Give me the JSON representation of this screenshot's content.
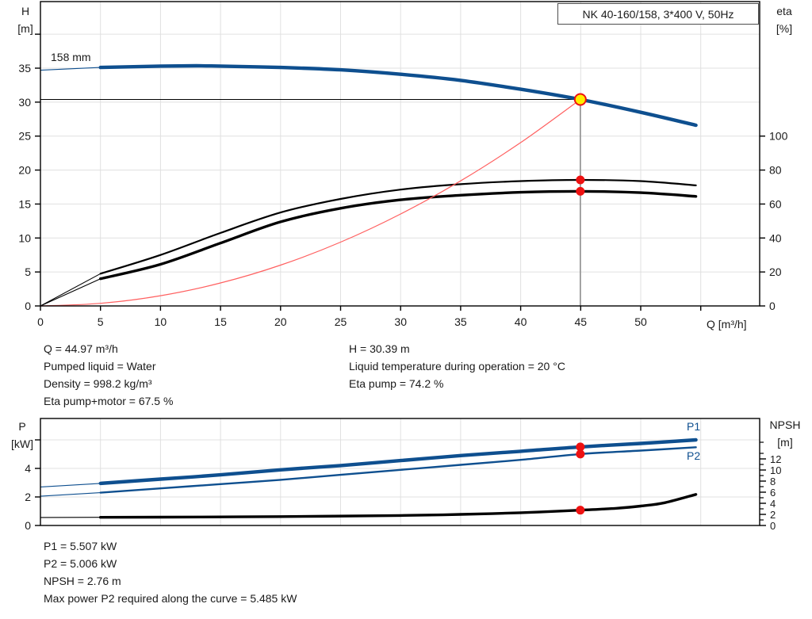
{
  "title_box": "NK 40-160/158, 3*400 V, 50Hz",
  "axis_labels": {
    "h": "H",
    "h_unit": "[m]",
    "eta": "eta",
    "eta_unit": "[%]",
    "q": "Q [m³/h]",
    "p": "P",
    "p_unit": "[kW]",
    "npsh": "NPSH",
    "npsh_unit": "[m]",
    "p1": "P1",
    "p2": "P2",
    "impeller": "158 mm"
  },
  "stats_top": {
    "left": [
      "Q = 44.97 m³/h",
      "Pumped liquid = Water",
      "Density = 998.2 kg/m³",
      "Eta pump+motor = 67.5 %"
    ],
    "right": [
      "H = 30.39 m",
      "Liquid temperature during operation = 20 °C",
      "Eta pump = 74.2 %"
    ]
  },
  "stats_bottom": [
    "P1 = 5.507 kW",
    "P2 = 5.006 kW",
    "NPSH = 2.76 m",
    "Max power P2 required along the curve = 5.485 kW"
  ],
  "colors": {
    "curve_blue": "#0e4f8f",
    "marker_red": "#ee1111",
    "system_red": "#ff6060",
    "duty_yellow": "#ffee00",
    "grid": "#e0e0e0",
    "duty_gray": "#8a8a8a",
    "axis_black": "#000000"
  },
  "chart_data": [
    {
      "type": "line",
      "title": "NK 40-160/158, 3*400 V, 50Hz",
      "xlabel": "Q [m³/h]",
      "ylabel_left": "H [m]",
      "ylabel_right": "eta [%]",
      "xlim": [
        0,
        59.9
      ],
      "ylim_left": [
        0,
        44.8
      ],
      "ylim_right": [
        0,
        192
      ],
      "x_ticks": [
        0,
        5,
        10,
        15,
        20,
        25,
        30,
        35,
        40,
        45,
        50
      ],
      "x_ticks_unlabeled": [
        55
      ],
      "y_ticks_left": [
        0,
        5,
        10,
        15,
        20,
        25,
        30,
        35
      ],
      "y_ticks_left_unlabeled": [
        40
      ],
      "y_ticks_right": [
        0,
        20,
        40,
        60,
        80,
        100
      ],
      "grid": true,
      "annotation": "158 mm",
      "series": [
        {
          "name": "pump-curve-158mm",
          "axis": "left",
          "style": "thick-blue",
          "points": [
            [
              0,
              34.7
            ],
            [
              5,
              35.1
            ],
            [
              10,
              35.3
            ],
            [
              13,
              35.35
            ],
            [
              15,
              35.3
            ],
            [
              20,
              35.1
            ],
            [
              25,
              34.75
            ],
            [
              30,
              34.1
            ],
            [
              35,
              33.2
            ],
            [
              40,
              31.9
            ],
            [
              44.97,
              30.39
            ],
            [
              50,
              28.5
            ],
            [
              54.6,
              26.6
            ]
          ]
        },
        {
          "name": "eta-pump",
          "axis": "right",
          "style": "thin-black",
          "points": [
            [
              0,
              0
            ],
            [
              5,
              19
            ],
            [
              10,
              30
            ],
            [
              15,
              43
            ],
            [
              20,
              55
            ],
            [
              25,
              63
            ],
            [
              30,
              68.5
            ],
            [
              35,
              71.7
            ],
            [
              40,
              73.5
            ],
            [
              44.97,
              74.2
            ],
            [
              50,
              73.5
            ],
            [
              54.6,
              71
            ]
          ]
        },
        {
          "name": "eta-pump-motor",
          "axis": "right",
          "style": "thick-black",
          "points": [
            [
              0,
              0
            ],
            [
              5,
              16
            ],
            [
              10,
              24.5
            ],
            [
              15,
              37
            ],
            [
              20,
              49.5
            ],
            [
              25,
              57.5
            ],
            [
              30,
              62.5
            ],
            [
              35,
              65.2
            ],
            [
              40,
              66.9
            ],
            [
              44.97,
              67.5
            ],
            [
              50,
              66.7
            ],
            [
              54.6,
              64.5
            ]
          ]
        },
        {
          "name": "system-curve",
          "axis": "left",
          "style": "thin-red",
          "points": [
            [
              0,
              0
            ],
            [
              5,
              0.38
            ],
            [
              10,
              1.5
            ],
            [
              15,
              3.38
            ],
            [
              20,
              6.01
            ],
            [
              25,
              9.39
            ],
            [
              30,
              13.53
            ],
            [
              35,
              18.41
            ],
            [
              40,
              24.05
            ],
            [
              44.97,
              30.39
            ]
          ]
        }
      ],
      "duty_point": {
        "q": 44.97,
        "h": 30.39,
        "eta_pump": 74.2,
        "eta_pump_motor": 67.5
      }
    },
    {
      "type": "line",
      "xlabel": "",
      "ylabel_left": "P [kW]",
      "ylabel_right": "NPSH [m]",
      "xlim": [
        0,
        59.9
      ],
      "ylim_left": [
        0,
        7.5
      ],
      "ylim_right": [
        0,
        19.3
      ],
      "y_ticks_left": [
        0,
        2,
        4
      ],
      "y_ticks_left_unlabeled": [
        6
      ],
      "y_ticks_right": [
        0,
        2,
        4,
        6,
        8,
        10,
        12
      ],
      "y_ticks_right_minor": [
        1,
        3,
        5,
        7,
        9,
        11,
        13,
        15
      ],
      "grid": true,
      "series": [
        {
          "name": "p1-curve",
          "axis": "left",
          "style": "thick-blue",
          "points": [
            [
              0,
              2.7
            ],
            [
              5,
              2.95
            ],
            [
              10,
              3.25
            ],
            [
              15,
              3.55
            ],
            [
              20,
              3.9
            ],
            [
              25,
              4.2
            ],
            [
              30,
              4.55
            ],
            [
              35,
              4.9
            ],
            [
              40,
              5.2
            ],
            [
              44.97,
              5.507
            ],
            [
              50,
              5.75
            ],
            [
              54.6,
              6.0
            ]
          ]
        },
        {
          "name": "p2-curve",
          "axis": "left",
          "style": "mid-blue",
          "points": [
            [
              0,
              2.05
            ],
            [
              5,
              2.3
            ],
            [
              10,
              2.6
            ],
            [
              15,
              2.9
            ],
            [
              20,
              3.2
            ],
            [
              25,
              3.55
            ],
            [
              30,
              3.9
            ],
            [
              35,
              4.25
            ],
            [
              40,
              4.6
            ],
            [
              44.97,
              5.006
            ],
            [
              50,
              5.25
            ],
            [
              54.6,
              5.485
            ]
          ]
        },
        {
          "name": "npsh-curve",
          "axis": "right",
          "style": "thick-black",
          "points": [
            [
              0,
              1.45
            ],
            [
              5,
              1.47
            ],
            [
              10,
              1.5
            ],
            [
              20,
              1.6
            ],
            [
              30,
              1.8
            ],
            [
              35,
              2.0
            ],
            [
              40,
              2.3
            ],
            [
              44.97,
              2.76
            ],
            [
              48,
              3.1
            ],
            [
              50,
              3.5
            ],
            [
              52,
              4.1
            ],
            [
              54.6,
              5.6
            ]
          ]
        }
      ],
      "duty_point": {
        "q": 44.97,
        "p1": 5.507,
        "p2": 5.006,
        "npsh": 2.76
      }
    }
  ]
}
